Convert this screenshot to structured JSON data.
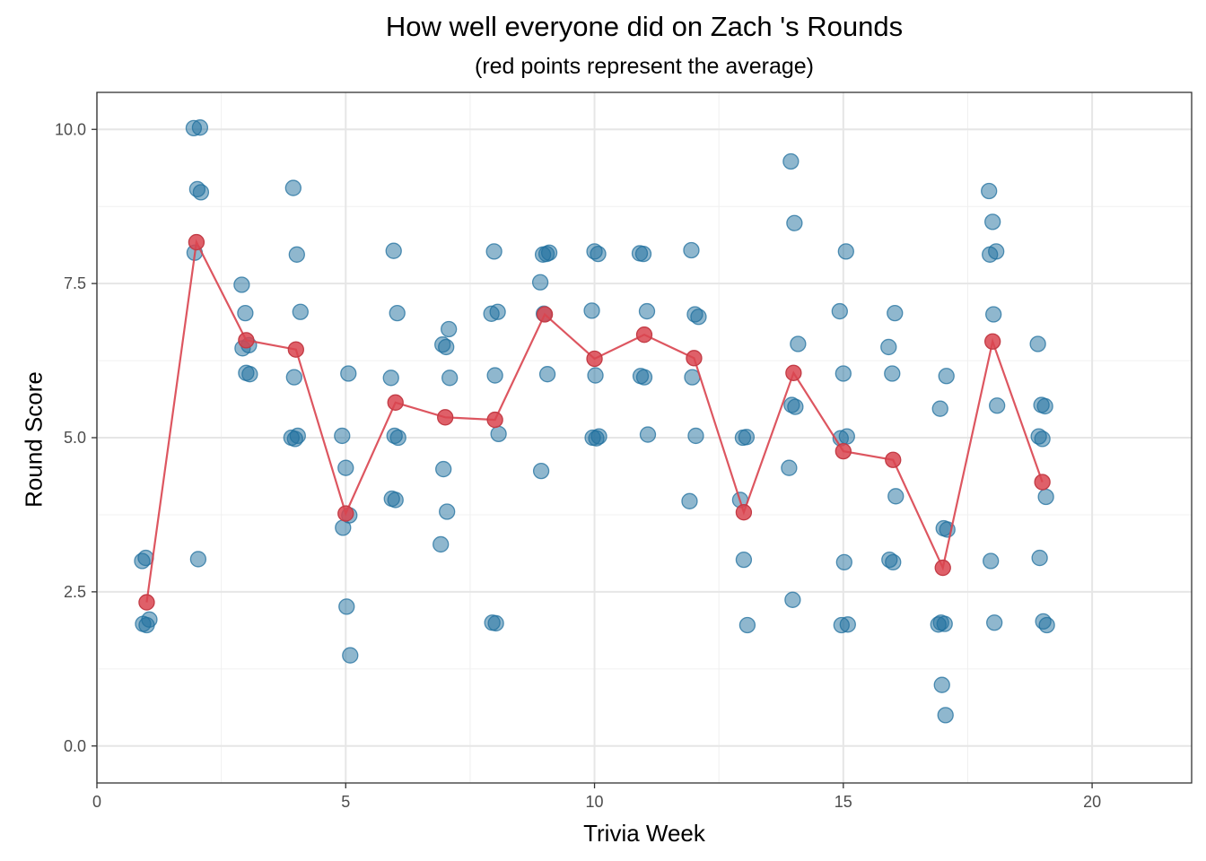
{
  "chart_data": {
    "type": "scatter",
    "title": "How well everyone did on Zach 's Rounds",
    "subtitle": "(red points represent the average)",
    "xlabel": "Trivia Week",
    "ylabel": "Round Score",
    "xlim": [
      0,
      22
    ],
    "ylim": [
      -0.6,
      10.6
    ],
    "x_ticks": [
      0,
      5,
      10,
      15,
      20
    ],
    "x_tick_labels": [
      "0",
      "5",
      "10",
      "15",
      "20"
    ],
    "y_ticks": [
      0,
      2.5,
      5,
      7.5,
      10
    ],
    "y_tick_labels": [
      "0.0",
      "2.5",
      "5.0",
      "7.5",
      "10.0"
    ],
    "grid": true,
    "colors": {
      "scores": "#1f6f9e",
      "average": "#d9444f"
    },
    "series": [
      {
        "role": "scores",
        "points": [
          [
            1,
            3.0
          ],
          [
            1,
            3.05
          ],
          [
            1,
            2.05
          ],
          [
            1,
            1.98
          ],
          [
            1,
            1.96
          ],
          [
            2,
            10.03
          ],
          [
            2,
            10.02
          ],
          [
            2,
            9.03
          ],
          [
            2,
            8.98
          ],
          [
            2,
            8.0
          ],
          [
            2,
            3.03
          ],
          [
            3,
            7.48
          ],
          [
            3,
            7.02
          ],
          [
            3,
            6.5
          ],
          [
            3,
            6.45
          ],
          [
            3,
            6.05
          ],
          [
            3,
            6.03
          ],
          [
            4,
            9.05
          ],
          [
            4,
            7.97
          ],
          [
            4,
            7.04
          ],
          [
            4,
            5.98
          ],
          [
            4,
            5.03
          ],
          [
            4,
            5.0
          ],
          [
            4,
            4.98
          ],
          [
            5,
            6.04
          ],
          [
            5,
            5.03
          ],
          [
            5,
            4.51
          ],
          [
            5,
            3.74
          ],
          [
            5,
            3.54
          ],
          [
            5,
            2.26
          ],
          [
            5,
            1.47
          ],
          [
            6,
            8.03
          ],
          [
            6,
            7.02
          ],
          [
            6,
            5.97
          ],
          [
            6,
            5.03
          ],
          [
            6,
            5.0
          ],
          [
            6,
            4.01
          ],
          [
            6,
            3.99
          ],
          [
            7,
            6.76
          ],
          [
            7,
            6.51
          ],
          [
            7,
            6.47
          ],
          [
            7,
            5.97
          ],
          [
            7,
            4.49
          ],
          [
            7,
            3.8
          ],
          [
            7,
            3.27
          ],
          [
            8,
            8.02
          ],
          [
            8,
            7.04
          ],
          [
            8,
            7.01
          ],
          [
            8,
            6.01
          ],
          [
            8,
            5.06
          ],
          [
            8,
            2.0
          ],
          [
            8,
            1.99
          ],
          [
            9,
            8.0
          ],
          [
            9,
            7.97
          ],
          [
            9,
            7.98
          ],
          [
            9,
            7.52
          ],
          [
            9,
            7.01
          ],
          [
            9,
            6.03
          ],
          [
            9,
            4.46
          ],
          [
            10,
            8.02
          ],
          [
            10,
            7.98
          ],
          [
            10,
            7.06
          ],
          [
            10,
            6.01
          ],
          [
            10,
            5.02
          ],
          [
            10,
            5.0
          ],
          [
            10,
            4.99
          ],
          [
            11,
            7.99
          ],
          [
            11,
            7.98
          ],
          [
            11,
            7.05
          ],
          [
            11,
            6.0
          ],
          [
            11,
            5.98
          ],
          [
            11,
            5.05
          ],
          [
            12,
            8.04
          ],
          [
            12,
            7.0
          ],
          [
            12,
            6.96
          ],
          [
            12,
            5.98
          ],
          [
            12,
            5.03
          ],
          [
            12,
            3.97
          ],
          [
            13,
            5.0
          ],
          [
            13,
            5.01
          ],
          [
            13,
            3.99
          ],
          [
            13,
            3.02
          ],
          [
            13,
            1.96
          ],
          [
            14,
            9.48
          ],
          [
            14,
            8.48
          ],
          [
            14,
            6.52
          ],
          [
            14,
            5.53
          ],
          [
            14,
            5.5
          ],
          [
            14,
            4.51
          ],
          [
            14,
            2.37
          ],
          [
            15,
            8.02
          ],
          [
            15,
            7.05
          ],
          [
            15,
            6.04
          ],
          [
            15,
            5.02
          ],
          [
            15,
            4.99
          ],
          [
            15,
            2.98
          ],
          [
            15,
            1.97
          ],
          [
            15,
            1.96
          ],
          [
            16,
            7.02
          ],
          [
            16,
            6.47
          ],
          [
            16,
            6.04
          ],
          [
            16,
            4.05
          ],
          [
            16,
            3.02
          ],
          [
            16,
            2.98
          ],
          [
            17,
            6.0
          ],
          [
            17,
            5.47
          ],
          [
            17,
            3.53
          ],
          [
            17,
            3.51
          ],
          [
            17,
            2.0
          ],
          [
            17,
            1.98
          ],
          [
            17,
            1.97
          ],
          [
            17,
            0.99
          ],
          [
            17,
            0.5
          ],
          [
            18,
            9.0
          ],
          [
            18,
            8.5
          ],
          [
            18,
            8.02
          ],
          [
            18,
            7.97
          ],
          [
            18,
            7.0
          ],
          [
            18,
            5.52
          ],
          [
            18,
            3.0
          ],
          [
            18,
            2.0
          ],
          [
            19,
            6.52
          ],
          [
            19,
            5.53
          ],
          [
            19,
            5.51
          ],
          [
            19,
            5.02
          ],
          [
            19,
            4.98
          ],
          [
            19,
            4.04
          ],
          [
            19,
            3.05
          ],
          [
            19,
            2.02
          ],
          [
            19,
            1.96
          ]
        ]
      },
      {
        "role": "average",
        "x": [
          1,
          2,
          3,
          4,
          5,
          6,
          7,
          8,
          9,
          10,
          11,
          12,
          13,
          14,
          15,
          16,
          17,
          18,
          19
        ],
        "y": [
          2.33,
          8.17,
          6.58,
          6.43,
          3.77,
          5.57,
          5.33,
          5.29,
          7.0,
          6.28,
          6.67,
          6.29,
          3.79,
          6.05,
          4.78,
          4.64,
          2.89,
          6.56,
          4.28
        ]
      }
    ]
  }
}
